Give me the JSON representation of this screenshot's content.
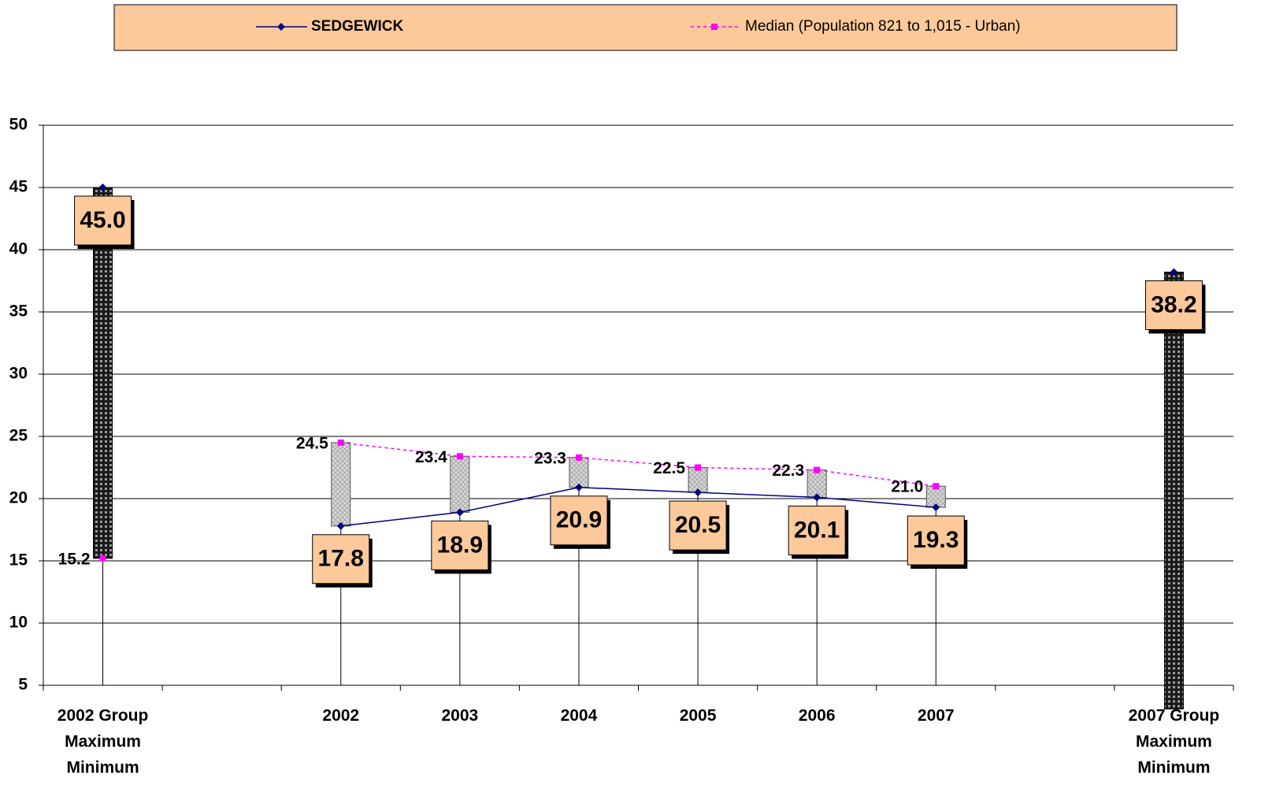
{
  "chart_data": {
    "type": "line",
    "categories": [
      "2002 Group\nMaximum\nMinimum",
      null,
      "2002",
      "2003",
      "2004",
      "2005",
      "2006",
      "2007",
      null,
      "2007 Group\nMaximum\nMinimum"
    ],
    "series": [
      {
        "name": "SEDGEWICK",
        "color": "#000080",
        "marker": "diamond",
        "dashed": false,
        "values": [
          45.0,
          null,
          17.8,
          18.9,
          20.9,
          20.5,
          20.1,
          19.3,
          null,
          38.2
        ],
        "value_labels": [
          "45.0",
          null,
          "17.8",
          "18.9",
          "20.9",
          "20.5",
          "20.1",
          "19.3",
          null,
          "38.2"
        ]
      },
      {
        "name": "Median (Population 821 to 1,015 - Urban)",
        "color": "#ff00ff",
        "marker": "square",
        "dashed": true,
        "values": [
          15.2,
          null,
          24.5,
          23.4,
          23.3,
          22.5,
          22.3,
          21.0,
          null,
          3.1
        ],
        "value_labels": [
          "15.2",
          null,
          "24.5",
          "23.4",
          "23.3",
          "22.5",
          "22.3",
          "21.0",
          null,
          null
        ]
      }
    ],
    "high_low_colors": [
      "#1a1a1a",
      null,
      "#cfcfcf",
      "#cfcfcf",
      "#cfcfcf",
      "#cfcfcf",
      "#cfcfcf",
      "#cfcfcf",
      null,
      "#1a1a1a"
    ],
    "ylim": [
      5,
      50
    ],
    "yticks": [
      5,
      10,
      15,
      20,
      25,
      30,
      35,
      40,
      45,
      50
    ],
    "grid": true,
    "legend": "top"
  }
}
